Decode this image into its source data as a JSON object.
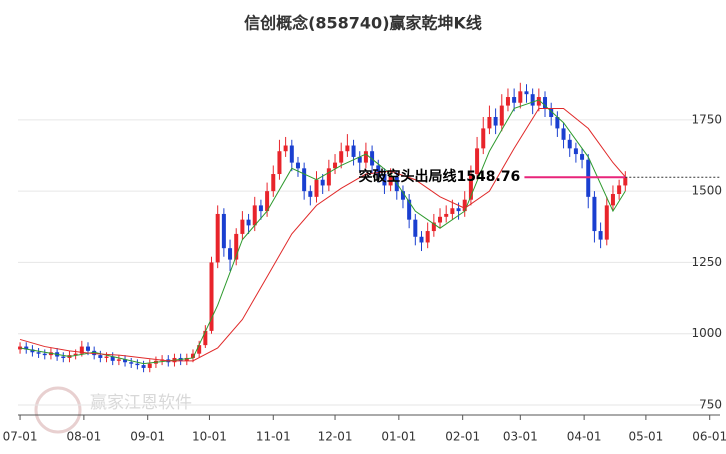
{
  "chart_data": {
    "type": "candlestick",
    "title": "信创概念(858740)赢家乾坤K线",
    "watermark": "赢家江恩软件",
    "annotation_label": "突破空头出局线1548.76",
    "annotation_value": 1548.76,
    "annotation_color": "#e8247a",
    "up_color": "#e8242b",
    "down_color": "#1a3fd0",
    "xlim": [
      -1,
      340
    ],
    "ylim": [
      715,
      2030
    ],
    "xticks": [
      {
        "value": 0,
        "label": "07-01"
      },
      {
        "value": 31,
        "label": "08-01"
      },
      {
        "value": 62,
        "label": "09-01"
      },
      {
        "value": 92,
        "label": "10-01"
      },
      {
        "value": 123,
        "label": "11-01"
      },
      {
        "value": 153,
        "label": "12-01"
      },
      {
        "value": 184,
        "label": "01-01"
      },
      {
        "value": 215,
        "label": "02-01"
      },
      {
        "value": 243,
        "label": "03-01"
      },
      {
        "value": 274,
        "label": "04-01"
      },
      {
        "value": 304,
        "label": "05-01"
      },
      {
        "value": 335,
        "label": "06-01"
      }
    ],
    "yticks": [
      750,
      1000,
      1250,
      1500,
      1750
    ],
    "grid": true,
    "x": [
      0,
      3,
      6,
      9,
      12,
      15,
      18,
      21,
      24,
      27,
      30,
      33,
      36,
      39,
      42,
      45,
      48,
      51,
      54,
      57,
      60,
      63,
      66,
      69,
      72,
      75,
      78,
      81,
      84,
      87,
      90,
      93,
      96,
      99,
      102,
      105,
      108,
      111,
      114,
      117,
      120,
      123,
      126,
      129,
      132,
      135,
      138,
      141,
      144,
      147,
      150,
      153,
      156,
      159,
      162,
      165,
      168,
      171,
      174,
      177,
      180,
      183,
      186,
      189,
      192,
      195,
      198,
      201,
      204,
      207,
      210,
      213,
      216,
      219,
      222,
      225,
      228,
      231,
      234,
      237,
      240,
      243,
      246,
      249,
      252,
      255,
      258,
      261,
      264,
      267,
      270,
      273,
      276,
      279,
      282,
      285,
      288,
      291,
      294
    ],
    "open": [
      945,
      955,
      945,
      935,
      930,
      925,
      935,
      920,
      915,
      925,
      930,
      955,
      940,
      925,
      915,
      920,
      905,
      910,
      900,
      895,
      890,
      880,
      895,
      905,
      910,
      900,
      915,
      905,
      915,
      930,
      960,
      1010,
      1250,
      1420,
      1300,
      1260,
      1350,
      1400,
      1380,
      1450,
      1430,
      1500,
      1560,
      1640,
      1660,
      1600,
      1580,
      1500,
      1480,
      1540,
      1520,
      1580,
      1600,
      1640,
      1660,
      1620,
      1600,
      1640,
      1590,
      1560,
      1520,
      1550,
      1500,
      1470,
      1400,
      1340,
      1320,
      1360,
      1390,
      1410,
      1420,
      1440,
      1430,
      1470,
      1560,
      1650,
      1720,
      1760,
      1730,
      1800,
      1830,
      1810,
      1850,
      1840,
      1800,
      1830,
      1790,
      1760,
      1720,
      1680,
      1650,
      1630,
      1610,
      1480,
      1360,
      1330,
      1450,
      1490,
      1520
    ],
    "close": [
      955,
      945,
      935,
      930,
      925,
      935,
      920,
      915,
      925,
      930,
      955,
      940,
      925,
      915,
      920,
      905,
      910,
      900,
      895,
      890,
      880,
      895,
      905,
      910,
      900,
      915,
      905,
      915,
      930,
      960,
      1010,
      1250,
      1420,
      1300,
      1260,
      1350,
      1400,
      1380,
      1450,
      1430,
      1500,
      1560,
      1640,
      1660,
      1600,
      1580,
      1500,
      1480,
      1540,
      1520,
      1580,
      1600,
      1640,
      1660,
      1620,
      1600,
      1640,
      1590,
      1560,
      1520,
      1550,
      1500,
      1470,
      1400,
      1340,
      1320,
      1360,
      1390,
      1410,
      1420,
      1440,
      1430,
      1470,
      1560,
      1650,
      1720,
      1760,
      1730,
      1800,
      1830,
      1810,
      1850,
      1840,
      1800,
      1830,
      1790,
      1760,
      1720,
      1680,
      1650,
      1630,
      1610,
      1480,
      1360,
      1330,
      1450,
      1490,
      1520,
      1548.76
    ],
    "high": [
      970,
      970,
      960,
      950,
      945,
      950,
      950,
      935,
      940,
      945,
      975,
      970,
      955,
      940,
      935,
      935,
      925,
      925,
      915,
      910,
      905,
      910,
      920,
      925,
      925,
      930,
      930,
      930,
      945,
      975,
      1030,
      1270,
      1450,
      1440,
      1330,
      1370,
      1430,
      1420,
      1480,
      1470,
      1530,
      1590,
      1680,
      1690,
      1680,
      1620,
      1600,
      1520,
      1570,
      1560,
      1610,
      1630,
      1670,
      1700,
      1680,
      1640,
      1670,
      1660,
      1610,
      1580,
      1580,
      1570,
      1520,
      1490,
      1420,
      1360,
      1390,
      1420,
      1440,
      1450,
      1470,
      1460,
      1500,
      1590,
      1690,
      1760,
      1800,
      1790,
      1840,
      1860,
      1860,
      1880,
      1875,
      1860,
      1860,
      1850,
      1810,
      1780,
      1740,
      1700,
      1670,
      1650,
      1630,
      1500,
      1390,
      1480,
      1520,
      1540,
      1570
    ],
    "low": [
      930,
      930,
      920,
      915,
      910,
      910,
      905,
      900,
      900,
      910,
      920,
      925,
      910,
      900,
      900,
      890,
      890,
      885,
      880,
      875,
      865,
      865,
      880,
      890,
      885,
      885,
      890,
      890,
      900,
      915,
      950,
      1000,
      1230,
      1270,
      1220,
      1240,
      1330,
      1350,
      1360,
      1400,
      1410,
      1480,
      1540,
      1620,
      1570,
      1550,
      1470,
      1450,
      1460,
      1490,
      1500,
      1560,
      1580,
      1620,
      1590,
      1570,
      1580,
      1560,
      1530,
      1490,
      1500,
      1470,
      1440,
      1370,
      1310,
      1290,
      1300,
      1340,
      1370,
      1390,
      1400,
      1400,
      1410,
      1450,
      1540,
      1630,
      1700,
      1700,
      1710,
      1780,
      1780,
      1790,
      1810,
      1770,
      1780,
      1760,
      1730,
      1690,
      1650,
      1620,
      1600,
      1580,
      1440,
      1320,
      1300,
      1310,
      1430,
      1470,
      1500
    ],
    "series": [
      {
        "color": "#2e9a2e",
        "x": [
          0,
          12,
          24,
          36,
          48,
          60,
          72,
          84,
          96,
          108,
          120,
          132,
          144,
          156,
          168,
          180,
          192,
          204,
          216,
          228,
          240,
          252,
          264,
          276,
          288,
          294
        ],
        "values": [
          950,
          935,
          920,
          935,
          915,
          895,
          905,
          915,
          1100,
          1330,
          1430,
          1580,
          1540,
          1590,
          1630,
          1560,
          1430,
          1370,
          1430,
          1640,
          1790,
          1820,
          1740,
          1620,
          1430,
          1500
        ]
      },
      {
        "color": "#e02a2a",
        "x": [
          0,
          12,
          24,
          36,
          48,
          60,
          72,
          84,
          96,
          108,
          120,
          132,
          144,
          156,
          168,
          180,
          192,
          204,
          216,
          228,
          240,
          252,
          264,
          276,
          288,
          294
        ],
        "values": [
          980,
          955,
          940,
          930,
          925,
          915,
          905,
          905,
          950,
          1050,
          1200,
          1350,
          1450,
          1510,
          1560,
          1570,
          1540,
          1480,
          1440,
          1500,
          1650,
          1790,
          1790,
          1720,
          1600,
          1550
        ]
      }
    ]
  }
}
